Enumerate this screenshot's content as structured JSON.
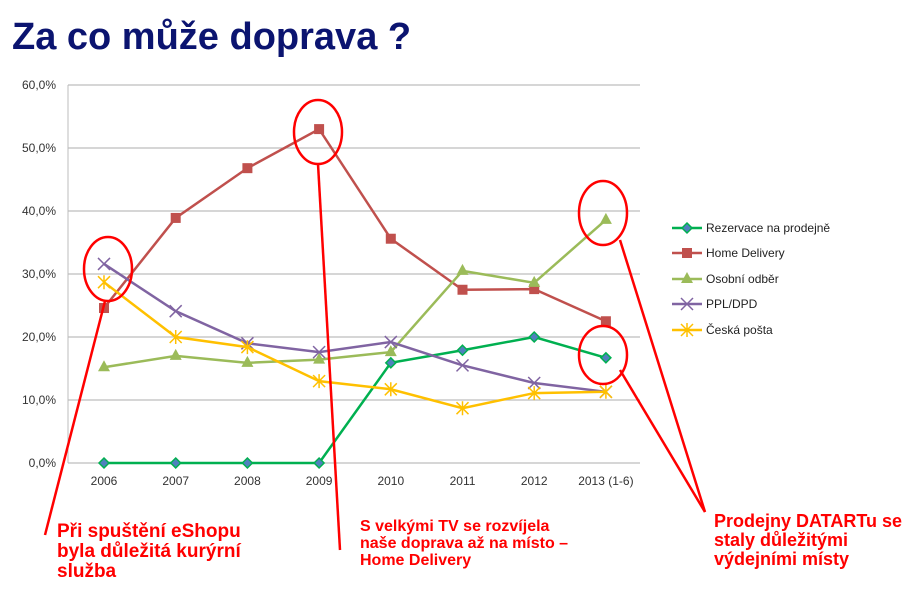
{
  "title": "Za co může doprava ?",
  "chart_data": {
    "type": "line",
    "title": "",
    "categories": [
      "2006",
      "2007",
      "2008",
      "2009",
      "2010",
      "2011",
      "2012",
      "2013 (1-6)"
    ],
    "ylim": [
      0,
      60
    ],
    "yticks": [
      "0,0%",
      "10,0%",
      "20,0%",
      "30,0%",
      "40,0%",
      "50,0%",
      "60,0%"
    ],
    "grid": true,
    "legend": "right",
    "series": [
      {
        "name": "Rezervace na prodejně",
        "color": "#00b050",
        "marker": "diamond",
        "values": [
          0,
          0,
          0,
          0,
          15.9,
          17.9,
          20.0,
          16.7
        ]
      },
      {
        "name": "Home Delivery",
        "color": "#c0504d",
        "marker": "square",
        "values": [
          24.6,
          38.9,
          46.8,
          53.0,
          35.6,
          27.5,
          27.6,
          22.5
        ]
      },
      {
        "name": "Osobní odběr",
        "color": "#9bbb59",
        "marker": "triangle",
        "values": [
          15.2,
          17.0,
          15.9,
          16.4,
          17.6,
          30.5,
          28.6,
          38.6
        ]
      },
      {
        "name": "PPL/DPD",
        "color": "#8064a2",
        "marker": "x",
        "values": [
          31.6,
          24.1,
          19.0,
          17.6,
          19.2,
          15.5,
          12.7,
          11.3
        ]
      },
      {
        "name": "Česká pošta",
        "color": "#ffc000",
        "marker": "star",
        "values": [
          28.7,
          20.0,
          18.4,
          13.0,
          11.7,
          8.7,
          11.1,
          11.3
        ]
      }
    ]
  },
  "annotations": [
    "Při spuštění eShopu byla důležitá kurýrní služba",
    "S velkými TV se rozvíjela naše doprava až na místo – Home Delivery",
    "Prodejny DATARTu se staly důležitými výdejními místy"
  ]
}
